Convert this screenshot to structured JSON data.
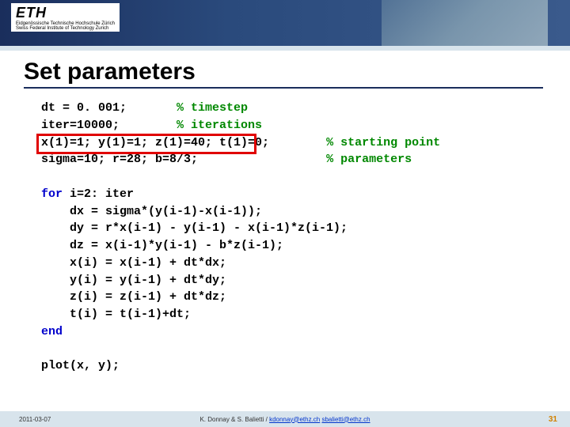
{
  "header": {
    "logo_main": "ETH",
    "logo_sub1": "Eidgenössische Technische Hochschule Zürich",
    "logo_sub2": "Swiss Federal Institute of Technology Zurich"
  },
  "title": "Set parameters",
  "code": {
    "l1a": "dt = 0. 001;       ",
    "l1b": "% timestep",
    "l2a": "iter=10000;        ",
    "l2b": "% iterations",
    "l3a": "x(1)=1; y(1)=1; z(1)=40; t(1)=0;        ",
    "l3b": "% starting point",
    "l4a": "sigma=10; r=28; b=8/3;                  ",
    "l4b": "% parameters",
    "l5": " ",
    "l6a": "for ",
    "l6b": "i=2: iter",
    "l7": "    dx = sigma*(y(i-1)-x(i-1));",
    "l8": "    dy = r*x(i-1) - y(i-1) - x(i-1)*z(i-1);",
    "l9": "    dz = x(i-1)*y(i-1) - b*z(i-1);",
    "l10": "    x(i) = x(i-1) + dt*dx;",
    "l11": "    y(i) = y(i-1) + dt*dy;",
    "l12": "    z(i) = z(i-1) + dt*dz;",
    "l13": "    t(i) = t(i-1)+dt;",
    "l14": "end",
    "l15": " ",
    "l16": "plot(x, y);"
  },
  "footer": {
    "date": "2011-03-07",
    "author": "K. Donnay & S. Balietti / ",
    "email1": "kdonnay@ethz.ch",
    "sep": "   ",
    "email2": "sbalietti@ethz.ch",
    "page": "31"
  },
  "colors": {
    "keyword": "#0000cc",
    "comment": "#008800",
    "plain": "#000000",
    "highlight_border": "#e00000",
    "title_underline": "#1a2e5c",
    "band": "#d8e4ec"
  }
}
